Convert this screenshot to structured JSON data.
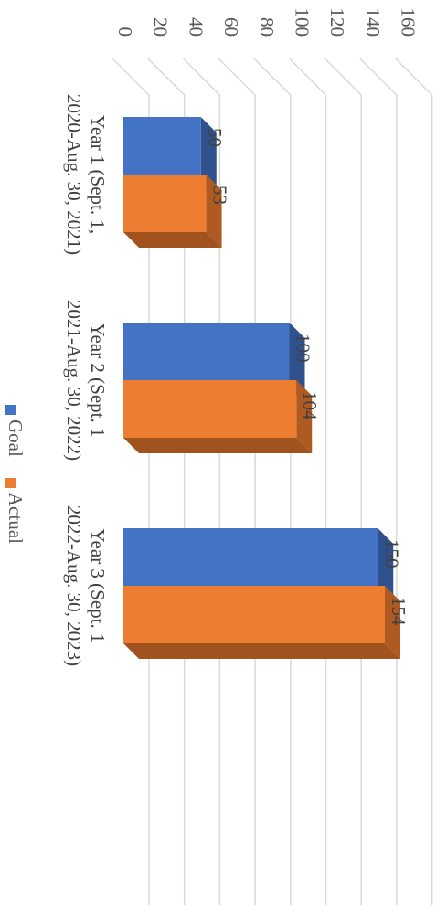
{
  "chart_data": {
    "type": "bar",
    "orientation": "rotated-90-clockwise",
    "three_d": true,
    "categories": [
      {
        "line1": "Year 1 (Sept. 1,",
        "line2": "2020-Aug. 30, 2021)"
      },
      {
        "line1": "Year 2 (Sept. 1",
        "line2": "2021-Aug. 30, 2022)"
      },
      {
        "line1": "Year 3 (Sept. 1",
        "line2": "2022-Aug. 30, 2023)"
      }
    ],
    "series": [
      {
        "name": "Goal",
        "values": [
          50,
          100,
          150
        ],
        "color": "#4472C4",
        "side_color": "#2F528F",
        "bottom_color": "#2F528F"
      },
      {
        "name": "Actual",
        "values": [
          53,
          104,
          154
        ],
        "color": "#ED7D31",
        "side_color": "#AE5A21",
        "bottom_color": "#A0521F"
      }
    ],
    "value_axis": {
      "min": 0,
      "max": 160,
      "step": 20,
      "ticks": [
        "0",
        "20",
        "40",
        "60",
        "80",
        "100",
        "120",
        "140",
        "160"
      ]
    },
    "grid": true,
    "gridline_color": "#D9D9D9",
    "legend_position": "bottom"
  }
}
